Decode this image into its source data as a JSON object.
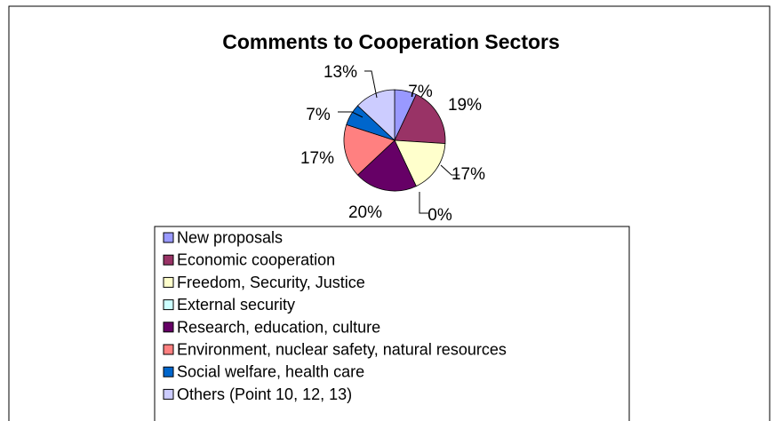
{
  "chart_data": {
    "type": "pie",
    "title": "Comments to Cooperation Sectors",
    "series": [
      {
        "name": "New proposals",
        "value": 7,
        "label": "7%",
        "color": "#9999FF"
      },
      {
        "name": "Economic cooperation",
        "value": 19,
        "label": "19%",
        "color": "#993366"
      },
      {
        "name": "Freedom, Security, Justice",
        "value": 17,
        "label": "17%",
        "color": "#FFFFCC"
      },
      {
        "name": "External security",
        "value": 0,
        "label": "0%",
        "color": "#CCFFFF"
      },
      {
        "name": "Research, education, culture",
        "value": 20,
        "label": "20%",
        "color": "#660066"
      },
      {
        "name": "Environment, nuclear safety, natural resources",
        "value": 17,
        "label": "17%",
        "color": "#FF8080"
      },
      {
        "name": "Social welfare, health care",
        "value": 7,
        "label": "7%",
        "color": "#0066CC"
      },
      {
        "name": "Others (Point 10, 12, 13)",
        "value": 13,
        "label": "13%",
        "color": "#CCCCFF"
      }
    ],
    "legend_position": "bottom"
  }
}
